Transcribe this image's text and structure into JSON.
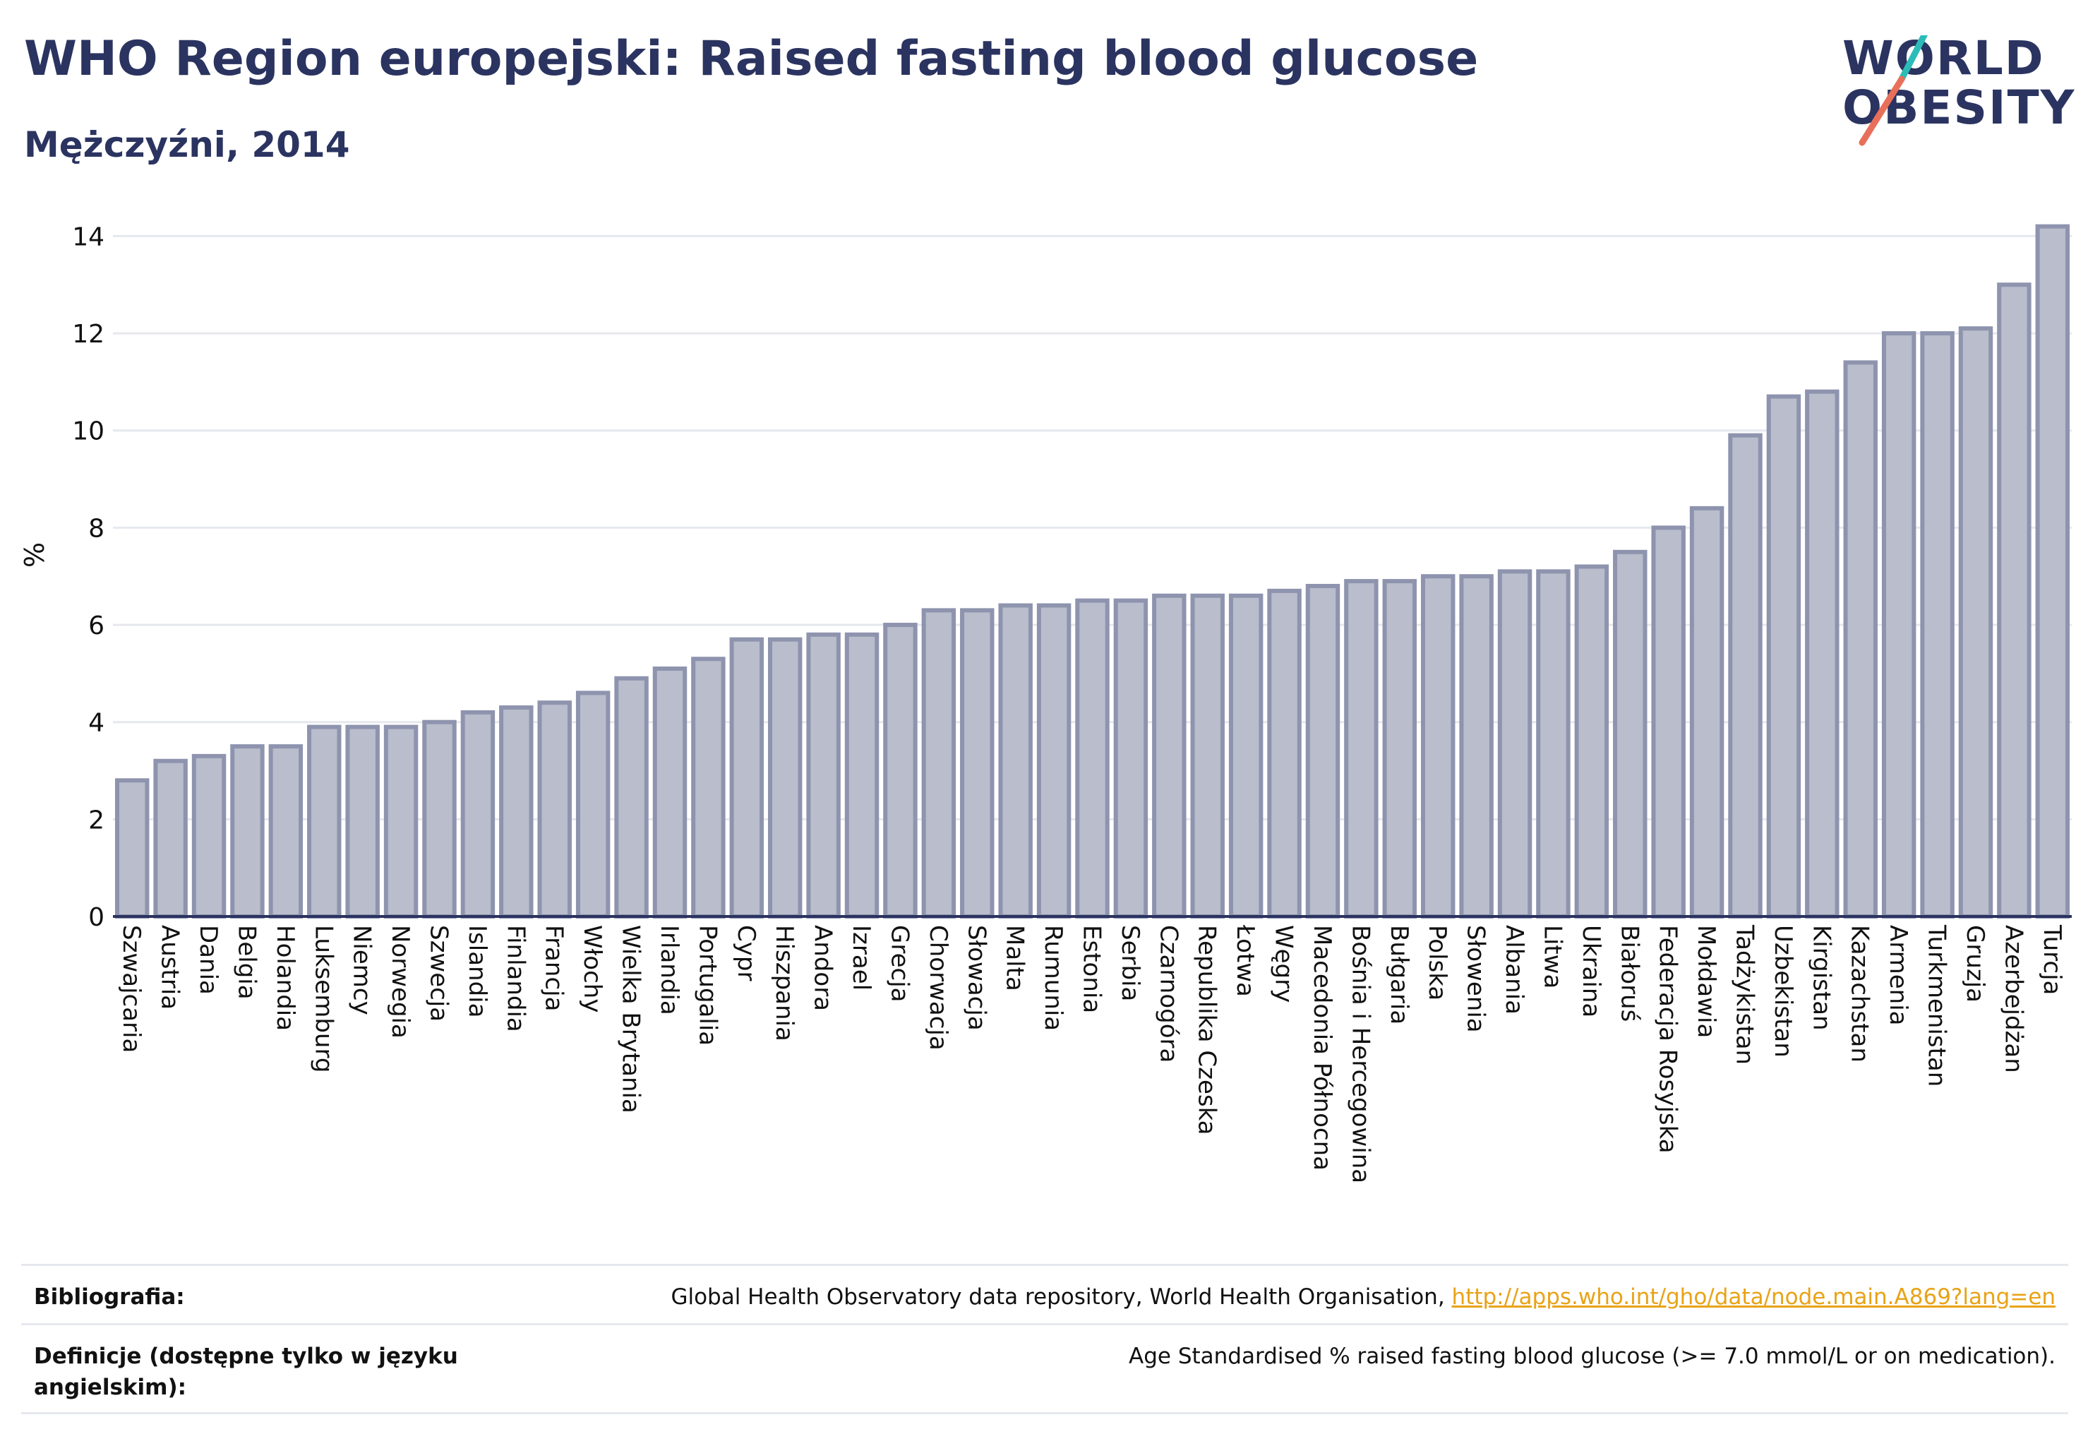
{
  "header": {
    "title": "WHO Region europejski: Raised fasting blood glucose",
    "subtitle": "Mężczyźni, 2014"
  },
  "logo": {
    "line1": "WORLD",
    "line2": "OBESITY",
    "colors": {
      "text": "#2b3460",
      "slash_top": "#2bbcb8",
      "slash_bottom": "#e8705a"
    }
  },
  "colors": {
    "bar_fill": "#b9bdcc",
    "bar_stroke": "#8e94ae",
    "axis": "#2b3460",
    "grid": "#e6e8ef",
    "link": "#e8a317"
  },
  "chart_data": {
    "type": "bar",
    "ylabel": "%",
    "ylim": [
      0,
      14.5
    ],
    "yticks": [
      0,
      2,
      4,
      6,
      8,
      10,
      12,
      14
    ],
    "grid": true,
    "categories": [
      "Szwajcaria",
      "Austria",
      "Dania",
      "Belgia",
      "Holandia",
      "Luksemburg",
      "Niemcy",
      "Norwegia",
      "Szwecja",
      "Islandia",
      "Finlandia",
      "Francja",
      "Włochy",
      "Wielka Brytania",
      "Irlandia",
      "Portugalia",
      "Cypr",
      "Hiszpania",
      "Andora",
      "Izrael",
      "Grecja",
      "Chorwacja",
      "Słowacja",
      "Malta",
      "Rumunia",
      "Estonia",
      "Serbia",
      "Czarnogóra",
      "Republika Czeska",
      "Łotwa",
      "Węgry",
      "Macedonia Północna",
      "Bośnia i Hercegowina",
      "Bułgaria",
      "Polska",
      "Słowenia",
      "Albania",
      "Litwa",
      "Ukraina",
      "Białoruś",
      "Federacja Rosyjska",
      "Mołdawia",
      "Tadżykistan",
      "Uzbekistan",
      "Kirgistan",
      "Kazachstan",
      "Armenia",
      "Turkmenistan",
      "Gruzja",
      "Azerbejdżan",
      "Turcja"
    ],
    "values": [
      2.8,
      3.2,
      3.3,
      3.5,
      3.5,
      3.9,
      3.9,
      3.9,
      4.0,
      4.2,
      4.3,
      4.4,
      4.6,
      4.9,
      5.1,
      5.3,
      5.7,
      5.7,
      5.8,
      5.8,
      6.0,
      6.3,
      6.3,
      6.4,
      6.4,
      6.5,
      6.5,
      6.6,
      6.6,
      6.6,
      6.7,
      6.8,
      6.9,
      6.9,
      7.0,
      7.0,
      7.1,
      7.1,
      7.2,
      7.5,
      8.0,
      8.4,
      9.9,
      10.7,
      10.8,
      11.4,
      12.0,
      12.0,
      12.1,
      13.0,
      14.2
    ]
  },
  "footer": {
    "bibliography_label": "Bibliografia:",
    "bibliography_text": "Global Health Observatory data repository, World Health Organisation, ",
    "bibliography_link": "http://apps.who.int/gho/data/node.main.A869?lang=en",
    "definitions_label": "Definicje (dostępne tylko w języku angielskim):",
    "definitions_text": "Age Standardised % raised fasting blood glucose (>= 7.0 mmol/L or on medication)."
  }
}
